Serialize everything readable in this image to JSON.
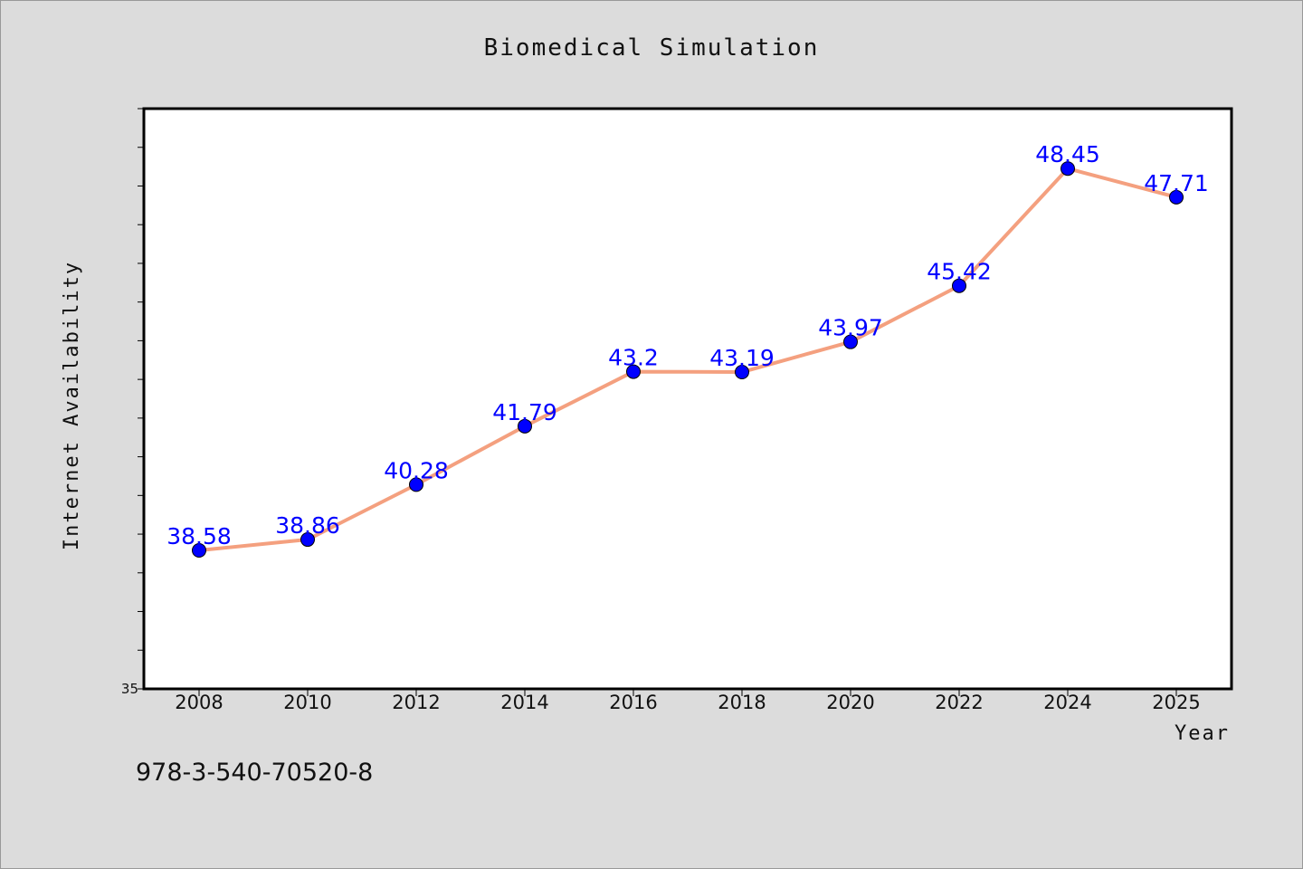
{
  "chart_data": {
    "type": "line",
    "title": "Biomedical Simulation",
    "xlabel": "Year",
    "ylabel": "Internet Availability",
    "categories": [
      "2008",
      "2010",
      "2012",
      "2014",
      "2016",
      "2018",
      "2020",
      "2022",
      "2024",
      "2025"
    ],
    "series": [
      {
        "values": [
          38.58,
          38.86,
          40.28,
          41.79,
          43.2,
          43.19,
          43.97,
          45.42,
          48.45,
          47.71
        ],
        "labels": [
          "38.58",
          "38.86",
          "40.28",
          "41.79",
          "43.2",
          "43.19",
          "43.97",
          "45.42",
          "48.45",
          "47.71"
        ],
        "line_color": "#f4a07f",
        "marker_color": "#0000ff"
      }
    ],
    "ylim": [
      35,
      50
    ],
    "ytick_labels": [
      "35"
    ],
    "grid": false,
    "legend": "none"
  },
  "note": "978-3-540-70520-8",
  "colors": {
    "background": "#dcdcdc",
    "plot_background": "#ffffff",
    "label_color": "#0000ff"
  }
}
